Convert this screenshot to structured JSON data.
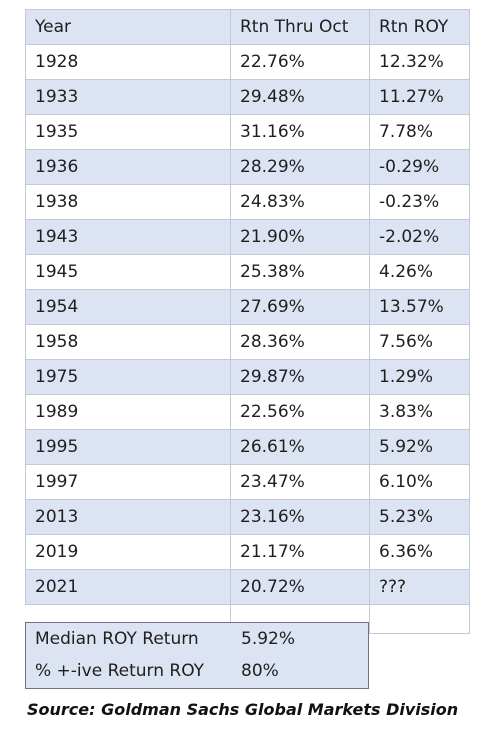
{
  "table": {
    "headers": [
      "Year",
      "Rtn Thru Oct",
      "Rtn ROY"
    ],
    "rows": [
      [
        "1928",
        "22.76%",
        "12.32%"
      ],
      [
        "1933",
        "29.48%",
        "11.27%"
      ],
      [
        "1935",
        "31.16%",
        "7.78%"
      ],
      [
        "1936",
        "28.29%",
        "-0.29%"
      ],
      [
        "1938",
        "24.83%",
        "-0.23%"
      ],
      [
        "1943",
        "21.90%",
        "-2.02%"
      ],
      [
        "1945",
        "25.38%",
        "4.26%"
      ],
      [
        "1954",
        "27.69%",
        "13.57%"
      ],
      [
        "1958",
        "28.36%",
        "7.56%"
      ],
      [
        "1975",
        "29.87%",
        "1.29%"
      ],
      [
        "1989",
        "22.56%",
        "3.83%"
      ],
      [
        "1995",
        "26.61%",
        "5.92%"
      ],
      [
        "1997",
        "23.47%",
        "6.10%"
      ],
      [
        "2013",
        "23.16%",
        "5.23%"
      ],
      [
        "2019",
        "21.17%",
        "6.36%"
      ],
      [
        "2021",
        "20.72%",
        "???"
      ]
    ]
  },
  "stats": {
    "median_label": "Median ROY Return",
    "median_value": "5.92%",
    "positive_label": "% +-ive Return ROY",
    "positive_value": "80%"
  },
  "source": "Source: Goldman Sachs Global Markets Division"
}
